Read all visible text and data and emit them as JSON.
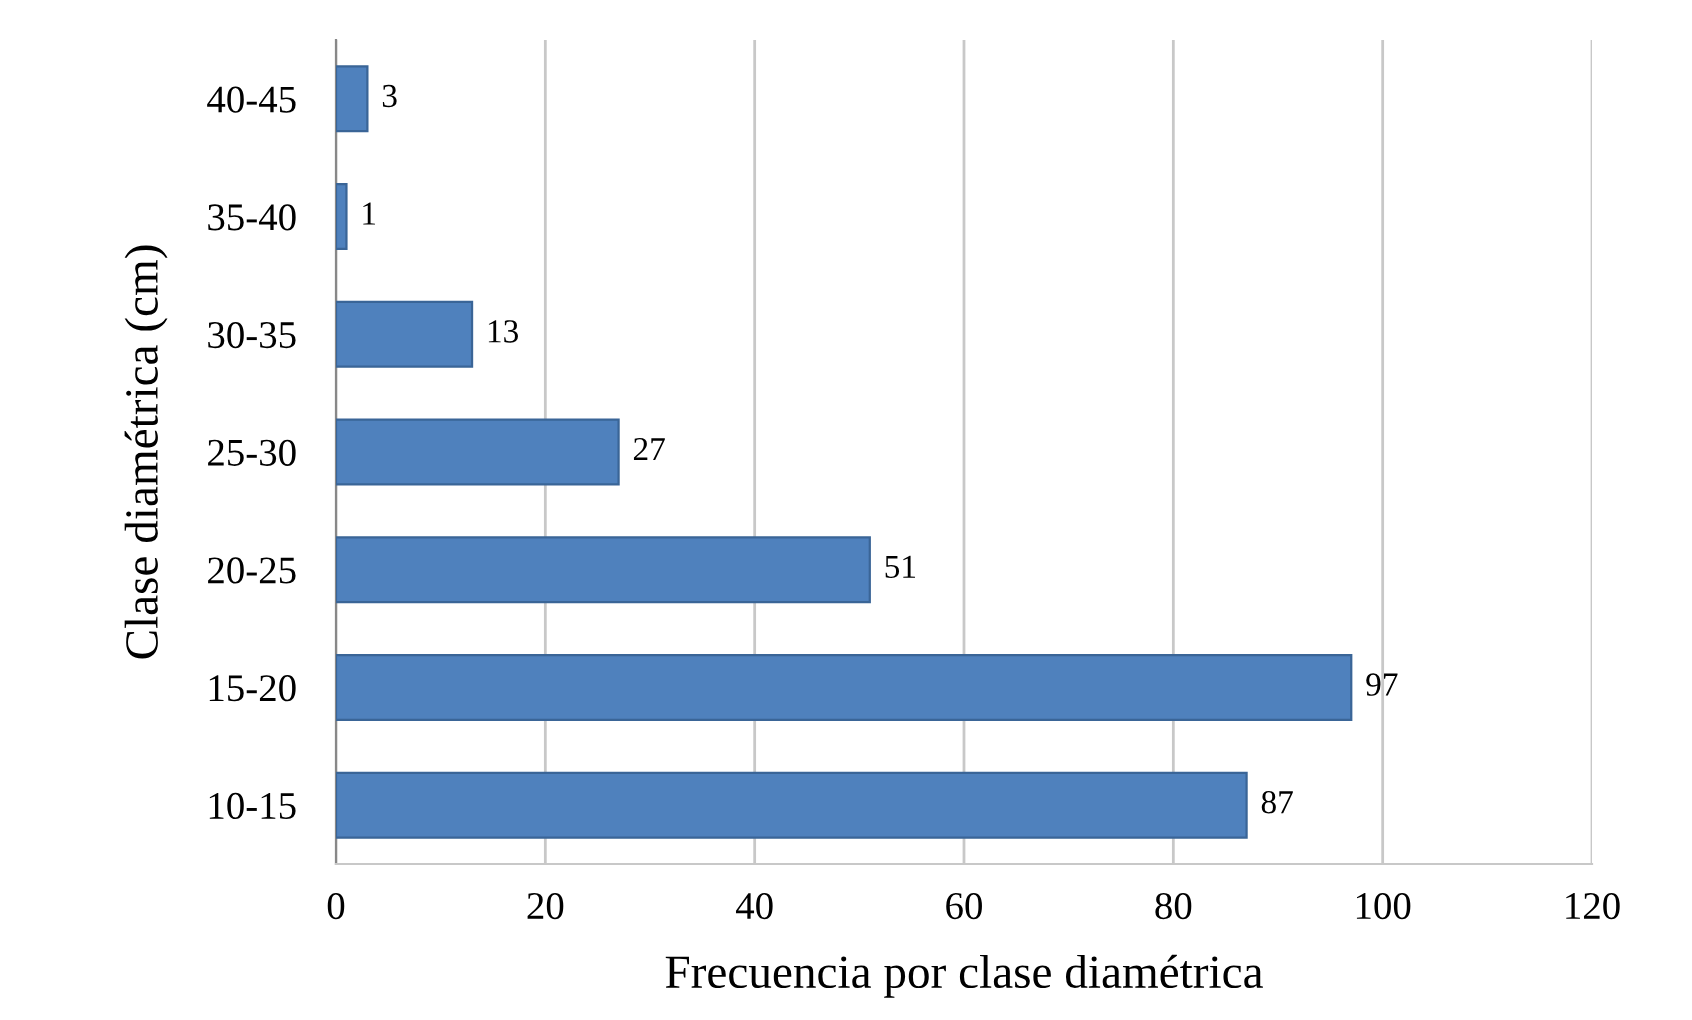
{
  "chart_data": {
    "type": "bar",
    "orientation": "horizontal",
    "xlabel": "Frecuencia por clase diamétrica",
    "ylabel": "Clase diamétrica (cm)",
    "categories": [
      "40-45",
      "35-40",
      "30-35",
      "25-30",
      "20-25",
      "15-20",
      "10-15"
    ],
    "values": [
      3,
      1,
      13,
      27,
      51,
      97,
      87
    ],
    "color": "#4f81bd",
    "data_labels": true,
    "grid": "x",
    "xlim": [
      0,
      120
    ],
    "xticks": [
      0,
      20,
      40,
      60,
      80,
      100,
      120
    ]
  }
}
